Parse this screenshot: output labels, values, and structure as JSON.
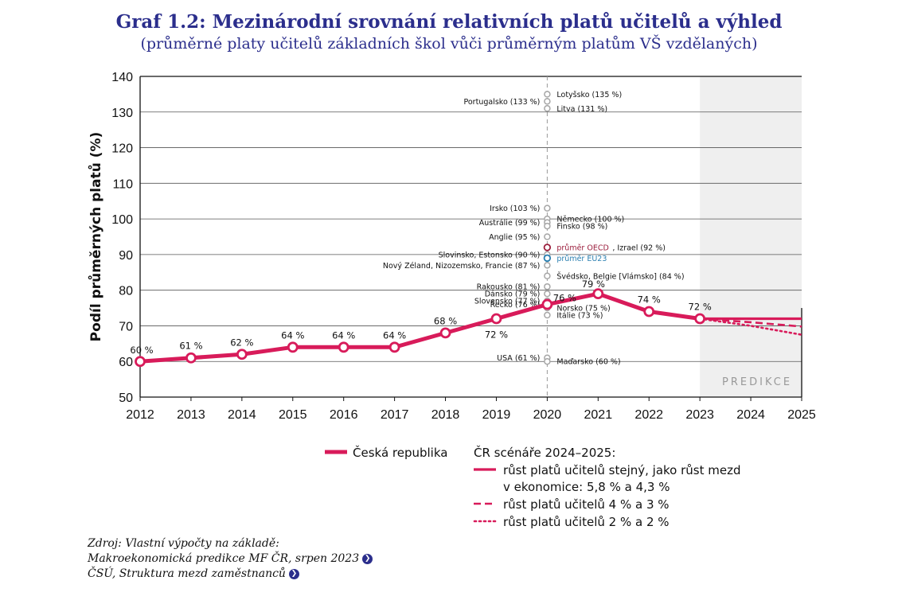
{
  "chart_data": {
    "type": "line",
    "title": "Graf 1.2: Mezinárodní srovnání relativních platů učitelů a výhled",
    "subtitle": "(průměrné platy učitelů základních škol vůči průměrným platům VŠ vzdělaných)",
    "ylabel": "Podíl průměrných platů (%)",
    "ylim": [
      50,
      140
    ],
    "yticks": [
      "50",
      "60",
      "70",
      "80",
      "90",
      "100",
      "110",
      "120",
      "130",
      "140"
    ],
    "x": [
      "2012",
      "2013",
      "2014",
      "2015",
      "2016",
      "2017",
      "2018",
      "2019",
      "2020",
      "2021",
      "2022",
      "2023",
      "2024",
      "2025"
    ],
    "grid": true,
    "prediction_label": "PREDIKCE",
    "prediction_range": [
      "2023",
      "2025"
    ],
    "main_series": {
      "name": "Česká republika",
      "x": [
        "2012",
        "2013",
        "2014",
        "2015",
        "2016",
        "2017",
        "2018",
        "2019",
        "2020",
        "2021",
        "2022",
        "2023"
      ],
      "values": [
        60,
        61,
        62,
        64,
        64,
        64,
        68,
        72,
        76,
        79,
        74,
        72
      ],
      "labels": [
        "60 %",
        "61 %",
        "62 %",
        "64 %",
        "64 %",
        "64 %",
        "68 %",
        "72 %",
        "76 %",
        "79 %",
        "74 %",
        "72 %"
      ]
    },
    "scenarios": [
      {
        "style": "solid",
        "x": [
          "2023",
          "2024",
          "2025"
        ],
        "values": [
          72,
          72,
          72
        ]
      },
      {
        "style": "dashed",
        "x": [
          "2023",
          "2024",
          "2025"
        ],
        "values": [
          72,
          71,
          69.8
        ]
      },
      {
        "style": "dotted",
        "x": [
          "2023",
          "2024",
          "2025"
        ],
        "values": [
          72,
          70,
          67.5
        ]
      }
    ],
    "countries": [
      {
        "label": "Lotyšsko (135 %)",
        "value": 135,
        "side": "right"
      },
      {
        "label": "Portugalsko (133 %)",
        "value": 133,
        "side": "left"
      },
      {
        "label": "Litva (131 %)",
        "value": 131,
        "side": "right"
      },
      {
        "label": "Irsko (103 %)",
        "value": 103,
        "side": "left"
      },
      {
        "label": "Německo (100 %)",
        "value": 100,
        "side": "right"
      },
      {
        "label": "Austrálie (99 %)",
        "value": 99,
        "side": "left"
      },
      {
        "label": "Finsko (98 %)",
        "value": 98,
        "side": "right"
      },
      {
        "label": "Anglie (95 %)",
        "value": 95,
        "side": "left"
      },
      {
        "label": "Izrael (92 %)",
        "value": 92,
        "side": "right"
      },
      {
        "label": "Slovinsko, Estonsko (90 %)",
        "value": 90,
        "side": "left"
      },
      {
        "label": "Nový Zéland, Nizozemsko, Francie (87 %)",
        "value": 87,
        "side": "left"
      },
      {
        "label": "Švédsko, Belgie [Vlámsko] (84 %)",
        "value": 84,
        "side": "right"
      },
      {
        "label": "Rakousko (81 %)",
        "value": 81,
        "side": "left"
      },
      {
        "label": "Dánsko (79 %)",
        "value": 79,
        "side": "left"
      },
      {
        "label": "Slovensko (77 %)",
        "value": 77,
        "side": "left"
      },
      {
        "label": "Řecko (76 %)",
        "value": 76,
        "side": "left"
      },
      {
        "label": "Norsko (75 %)",
        "value": 75,
        "side": "right"
      },
      {
        "label": "Itálie (73 %)",
        "value": 73,
        "side": "right"
      },
      {
        "label": "USA (61 %)",
        "value": 61,
        "side": "left"
      },
      {
        "label": "Maďarsko (60 %)",
        "value": 60,
        "side": "right"
      }
    ],
    "highlights": [
      {
        "label": "průměr OECD",
        "value": 92,
        "color": "#9b1d3c"
      },
      {
        "label": "průměr EU23",
        "value": 89,
        "color": "#2a7fb0"
      }
    ],
    "colors": {
      "main": "#d81b5a",
      "marker_grey": "#a6a6a6",
      "prediction_bg": "#efefef",
      "title": "#2b2e8c"
    }
  },
  "legend": {
    "main_label": "Česká republika",
    "scenarios_title": "ČR scénáře 2024–2025:",
    "scenario_solid_line1": "růst platů učitelů stejný, jako růst mezd",
    "scenario_solid_line2": "v ekonomice: 5,8 % a 4,3 %",
    "scenario_dashed": "růst platů učitelů 4 % a 3 %",
    "scenario_dotted": "růst platů učitelů  2 % a 2 %"
  },
  "source": {
    "line1": "Zdroj: Vlastní výpočty na základě:",
    "line2": "Makroekonomická predikce  MF ČR, srpen 2023",
    "line3": "ČSÚ, Struktura mezd zaměstnanců"
  }
}
